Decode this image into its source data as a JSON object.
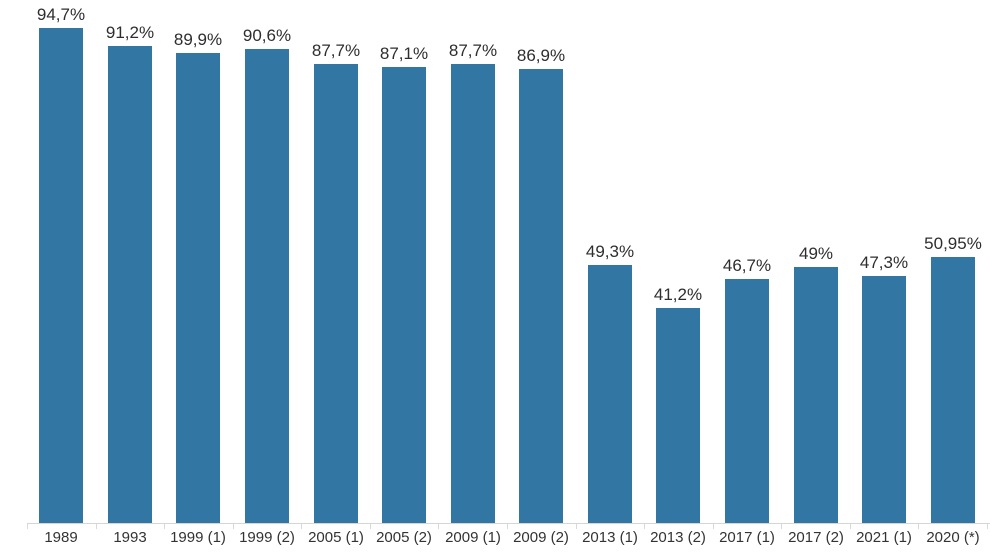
{
  "chart_data": {
    "type": "bar",
    "title": "",
    "xlabel": "",
    "ylabel": "",
    "ylim": [
      0,
      100
    ],
    "grid": false,
    "legend": false,
    "value_format": "percent, comma decimal separator",
    "categories": [
      "1989",
      "1993",
      "1999 (1)",
      "1999 (2)",
      "2005 (1)",
      "2005 (2)",
      "2009 (1)",
      "2009 (2)",
      "2013 (1)",
      "2013 (2)",
      "2017 (1)",
      "2017 (2)",
      "2021 (1)",
      "2020 (*)"
    ],
    "values": [
      94.7,
      91.2,
      89.9,
      90.6,
      87.7,
      87.1,
      87.7,
      86.9,
      49.3,
      41.2,
      46.7,
      49,
      47.3,
      50.95
    ],
    "value_labels": [
      "94,7%",
      "91,2%",
      "89,9%",
      "90,6%",
      "87,7%",
      "87,1%",
      "87,7%",
      "86,9%",
      "49,3%",
      "41,2%",
      "46,7%",
      "49%",
      "47,3%",
      "50,95%"
    ],
    "colors": {
      "bar": "#3276a3",
      "axis_line": "#d5d5d5",
      "tick": "#d9d9d9",
      "value_label_text": "#2e2e2e",
      "axis_label_text": "#333333",
      "background": "#ffffff"
    }
  }
}
